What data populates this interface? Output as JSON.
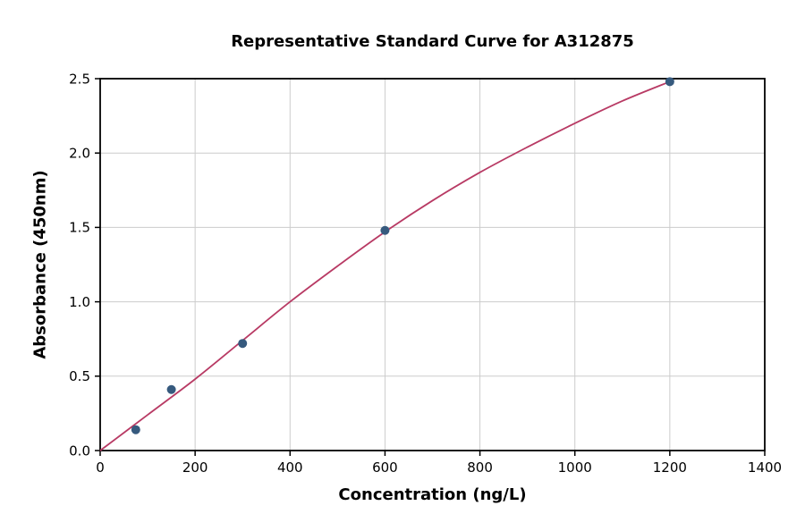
{
  "chart_data": {
    "type": "scatter",
    "title": "Representative Standard Curve for A312875",
    "xlabel": "Concentration (ng/L)",
    "ylabel": "Absorbance (450nm)",
    "xlim": [
      0,
      1400
    ],
    "ylim": [
      0,
      2.5
    ],
    "x_ticks": [
      0,
      200,
      400,
      600,
      800,
      1000,
      1200,
      1400
    ],
    "x_tick_labels": [
      "0",
      "200",
      "400",
      "600",
      "800",
      "1000",
      "1200",
      "1400"
    ],
    "y_ticks": [
      0.0,
      0.5,
      1.0,
      1.5,
      2.0,
      2.5
    ],
    "y_tick_labels": [
      "0.0",
      "0.5",
      "1.0",
      "1.5",
      "2.0",
      "2.5"
    ],
    "grid": true,
    "legend_position": "none",
    "series": [
      {
        "name": "standard-points",
        "type": "scatter",
        "x": [
          75,
          150,
          300,
          600,
          1200
        ],
        "y": [
          0.14,
          0.41,
          0.72,
          1.48,
          2.48
        ],
        "color": "#365a7e",
        "marker_radius": 5
      },
      {
        "name": "fitted-curve",
        "type": "line",
        "x": [
          0,
          100,
          200,
          300,
          400,
          500,
          600,
          700,
          800,
          900,
          1000,
          1100,
          1200
        ],
        "y": [
          0.0,
          0.24,
          0.48,
          0.74,
          1.0,
          1.24,
          1.47,
          1.68,
          1.87,
          2.04,
          2.2,
          2.35,
          2.48
        ],
        "color": "#b83a64",
        "line_width": 1.8
      }
    ]
  },
  "colors": {
    "background": "#ffffff",
    "grid": "#cccccc",
    "spine": "#000000",
    "text": "#000000"
  }
}
